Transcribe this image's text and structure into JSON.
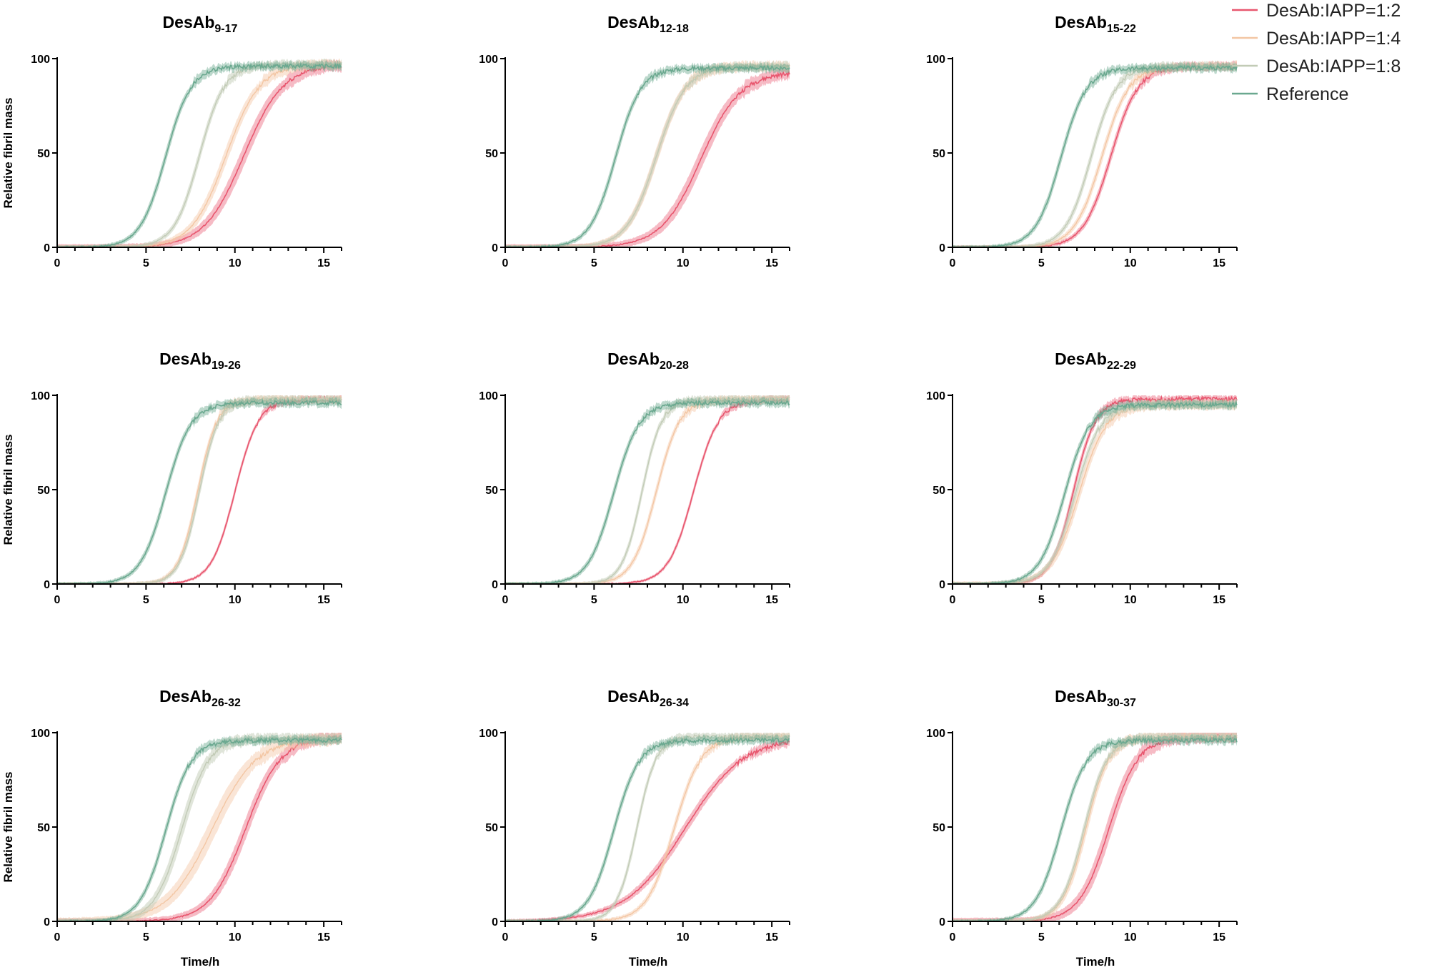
{
  "chart_data": {
    "type": "line",
    "layout": "3x3 small multiples",
    "x": {
      "label": "Time/h",
      "range": [
        0,
        16
      ],
      "ticks": [
        0,
        5,
        10,
        15
      ]
    },
    "y": {
      "label": "Relative fibril mass",
      "range": [
        0,
        100
      ],
      "ticks": [
        0,
        50,
        100
      ]
    },
    "legend": {
      "placement": "top-right",
      "entries": [
        {
          "name": "DesAb:IAPP=1:2",
          "color": "#e8566e"
        },
        {
          "name": "DesAb:IAPP=1:4",
          "color": "#f3c6a3"
        },
        {
          "name": "DesAb:IAPP=1:8",
          "color": "#c2cbb6"
        },
        {
          "name": "Reference",
          "color": "#6aa88f"
        }
      ]
    },
    "panels": [
      {
        "title_main": "DesAb",
        "title_sub": "9-17",
        "series": [
          {
            "name": "DesAb:IAPP=1:2",
            "t_half": 10.5,
            "rate": 0.9,
            "band": 5,
            "plateau": 97
          },
          {
            "name": "DesAb:IAPP=1:4",
            "t_half": 9.5,
            "rate": 1.05,
            "band": 4,
            "plateau": 97
          },
          {
            "name": "DesAb:IAPP=1:8",
            "t_half": 8.0,
            "rate": 1.4,
            "band": 3,
            "plateau": 97
          },
          {
            "name": "Reference",
            "t_half": 6.1,
            "rate": 1.4,
            "band": 3,
            "plateau": 96
          }
        ]
      },
      {
        "title_main": "DesAb",
        "title_sub": "12-18",
        "series": [
          {
            "name": "DesAb:IAPP=1:2",
            "t_half": 11.0,
            "rate": 0.9,
            "band": 5,
            "plateau": 93
          },
          {
            "name": "DesAb:IAPP=1:4",
            "t_half": 8.5,
            "rate": 1.2,
            "band": 4,
            "plateau": 96
          },
          {
            "name": "DesAb:IAPP=1:8",
            "t_half": 8.5,
            "rate": 1.2,
            "band": 3,
            "plateau": 96
          },
          {
            "name": "Reference",
            "t_half": 6.2,
            "rate": 1.4,
            "band": 3,
            "plateau": 95
          }
        ]
      },
      {
        "title_main": "DesAb",
        "title_sub": "15-22",
        "series": [
          {
            "name": "DesAb:IAPP=1:2",
            "t_half": 8.9,
            "rate": 1.3,
            "band": 3,
            "plateau": 96
          },
          {
            "name": "DesAb:IAPP=1:4",
            "t_half": 8.4,
            "rate": 1.3,
            "band": 3,
            "plateau": 96
          },
          {
            "name": "DesAb:IAPP=1:8",
            "t_half": 7.8,
            "rate": 1.4,
            "band": 3,
            "plateau": 96
          },
          {
            "name": "Reference",
            "t_half": 6.1,
            "rate": 1.4,
            "band": 3,
            "plateau": 95
          }
        ]
      },
      {
        "title_main": "DesAb",
        "title_sub": "19-26",
        "series": [
          {
            "name": "DesAb:IAPP=1:2",
            "t_half": 10.0,
            "rate": 1.5,
            "band": 2,
            "plateau": 98
          },
          {
            "name": "DesAb:IAPP=1:4",
            "t_half": 7.9,
            "rate": 1.8,
            "band": 3,
            "plateau": 98
          },
          {
            "name": "DesAb:IAPP=1:8",
            "t_half": 8.0,
            "rate": 1.8,
            "band": 3,
            "plateau": 98
          },
          {
            "name": "Reference",
            "t_half": 6.1,
            "rate": 1.4,
            "band": 3,
            "plateau": 96
          }
        ]
      },
      {
        "title_main": "DesAb",
        "title_sub": "20-28",
        "series": [
          {
            "name": "DesAb:IAPP=1:2",
            "t_half": 10.6,
            "rate": 1.4,
            "band": 2,
            "plateau": 98
          },
          {
            "name": "DesAb:IAPP=1:4",
            "t_half": 8.5,
            "rate": 1.5,
            "band": 3,
            "plateau": 98
          },
          {
            "name": "DesAb:IAPP=1:8",
            "t_half": 7.7,
            "rate": 1.8,
            "band": 3,
            "plateau": 98
          },
          {
            "name": "Reference",
            "t_half": 6.1,
            "rate": 1.4,
            "band": 3,
            "plateau": 96
          }
        ]
      },
      {
        "title_main": "DesAb",
        "title_sub": "22-29",
        "series": [
          {
            "name": "DesAb:IAPP=1:2",
            "t_half": 6.8,
            "rate": 1.6,
            "band": 3,
            "plateau": 98
          },
          {
            "name": "DesAb:IAPP=1:4",
            "t_half": 7.1,
            "rate": 1.3,
            "band": 4,
            "plateau": 95
          },
          {
            "name": "DesAb:IAPP=1:8",
            "t_half": 6.9,
            "rate": 1.4,
            "band": 3,
            "plateau": 95
          },
          {
            "name": "Reference",
            "t_half": 6.3,
            "rate": 1.4,
            "band": 3,
            "plateau": 95
          }
        ]
      },
      {
        "title_main": "DesAb",
        "title_sub": "26-32",
        "series": [
          {
            "name": "DesAb:IAPP=1:2",
            "t_half": 10.6,
            "rate": 1.0,
            "band": 5,
            "plateau": 98
          },
          {
            "name": "DesAb:IAPP=1:4",
            "t_half": 8.7,
            "rate": 0.8,
            "band": 6,
            "plateau": 97
          },
          {
            "name": "DesAb:IAPP=1:8",
            "t_half": 7.0,
            "rate": 1.3,
            "band": 5,
            "plateau": 97
          },
          {
            "name": "Reference",
            "t_half": 6.1,
            "rate": 1.4,
            "band": 3,
            "plateau": 96
          }
        ]
      },
      {
        "title_main": "DesAb",
        "title_sub": "26-34",
        "series": [
          {
            "name": "DesAb:IAPP=1:2",
            "t_half": 10.1,
            "rate": 0.6,
            "band": 3,
            "plateau": 98
          },
          {
            "name": "DesAb:IAPP=1:4",
            "t_half": 9.5,
            "rate": 1.3,
            "band": 3,
            "plateau": 98
          },
          {
            "name": "DesAb:IAPP=1:8",
            "t_half": 7.4,
            "rate": 1.8,
            "band": 3,
            "plateau": 98
          },
          {
            "name": "Reference",
            "t_half": 6.1,
            "rate": 1.4,
            "band": 3,
            "plateau": 96
          }
        ]
      },
      {
        "title_main": "DesAb",
        "title_sub": "30-37",
        "series": [
          {
            "name": "DesAb:IAPP=1:2",
            "t_half": 8.8,
            "rate": 1.2,
            "band": 6,
            "plateau": 98
          },
          {
            "name": "DesAb:IAPP=1:4",
            "t_half": 7.5,
            "rate": 1.5,
            "band": 4,
            "plateau": 98
          },
          {
            "name": "DesAb:IAPP=1:8",
            "t_half": 7.4,
            "rate": 1.5,
            "band": 3,
            "plateau": 98
          },
          {
            "name": "Reference",
            "t_half": 6.1,
            "rate": 1.4,
            "band": 3,
            "plateau": 96
          }
        ]
      }
    ]
  }
}
